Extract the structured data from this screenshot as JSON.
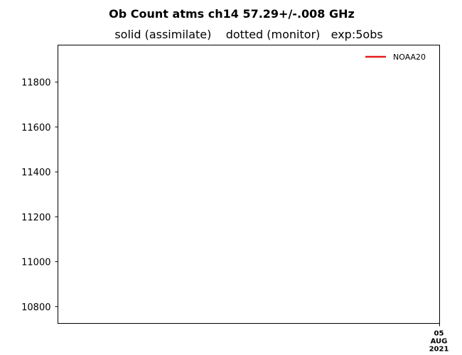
{
  "chart_data": {
    "type": "line",
    "title": "Ob Count atms ch14 57.29+/-.008 GHz",
    "subtitle": "solid (assimilate)    dotted (monitor)   exp:5obs",
    "xlabel": "",
    "ylabel": "",
    "ylim": [
      10725,
      11965
    ],
    "yticks": [
      10800,
      11000,
      11200,
      11400,
      11600,
      11800
    ],
    "ytick_labels": [
      "10800",
      "11000",
      "11200",
      "11400",
      "11600",
      "11800"
    ],
    "xticks": [
      {
        "x": "2021-08-05",
        "lines": [
          "05",
          "AUG",
          "2021"
        ]
      }
    ],
    "xlim": [
      "2021-07-27",
      "2021-08-05"
    ],
    "grid": false,
    "legend": {
      "placement": "top-right"
    },
    "series": [
      {
        "name": "NOAA20",
        "color": "#e41a1c",
        "style": "solid",
        "x": [],
        "y": []
      }
    ]
  }
}
